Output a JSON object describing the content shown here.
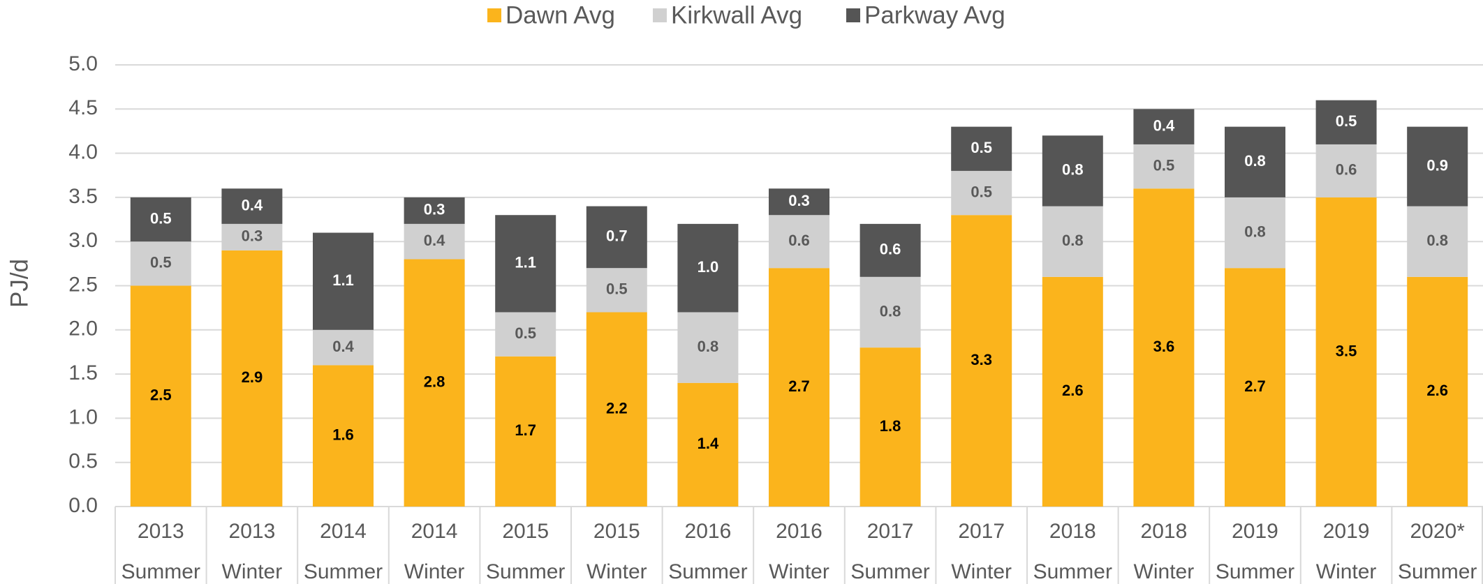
{
  "chart_data": {
    "type": "stacked-bar",
    "y_label": "PJ/d",
    "categories": [
      [
        "2013",
        "Summer"
      ],
      [
        "2013",
        "Winter"
      ],
      [
        "2014",
        "Summer"
      ],
      [
        "2014",
        "Winter"
      ],
      [
        "2015",
        "Summer"
      ],
      [
        "2015",
        "Winter"
      ],
      [
        "2016",
        "Summer"
      ],
      [
        "2016",
        "Winter"
      ],
      [
        "2017",
        "Summer"
      ],
      [
        "2017",
        "Winter"
      ],
      [
        "2018",
        "Summer"
      ],
      [
        "2018",
        "Winter"
      ],
      [
        "2019",
        "Summer"
      ],
      [
        "2019",
        "Winter"
      ],
      [
        "2020*",
        "Summer"
      ]
    ],
    "series": [
      {
        "name": "Dawn Avg",
        "color": "#fbb41c",
        "label_color": "#000000",
        "values": [
          2.5,
          2.9,
          1.6,
          2.8,
          1.7,
          2.2,
          1.4,
          2.7,
          1.8,
          3.3,
          2.6,
          3.6,
          2.7,
          3.5,
          2.6
        ],
        "value_labels": [
          "2.5",
          "2.9",
          "1.6",
          "2.8",
          "1.7",
          "2.2",
          "1.4",
          "2.7",
          "1.8",
          "3.3",
          "2.6",
          "3.6",
          "2.7",
          "3.5",
          "2.6"
        ]
      },
      {
        "name": "Kirkwall Avg",
        "color": "#d0d0d0",
        "label_color": "#595959",
        "values": [
          0.5,
          0.3,
          0.4,
          0.4,
          0.5,
          0.5,
          0.8,
          0.6,
          0.8,
          0.5,
          0.8,
          0.5,
          0.8,
          0.6,
          0.8
        ],
        "value_labels": [
          "0.5",
          "0.3",
          "0.4",
          "0.4",
          "0.5",
          "0.5",
          "0.8",
          "0.6",
          "0.8",
          "0.5",
          "0.8",
          "0.5",
          "0.8",
          "0.6",
          "0.8"
        ]
      },
      {
        "name": "Parkway Avg",
        "color": "#555555",
        "label_color": "#ffffff",
        "values": [
          0.5,
          0.4,
          1.1,
          0.3,
          1.1,
          0.7,
          1.0,
          0.3,
          0.6,
          0.5,
          0.8,
          0.4,
          0.8,
          0.5,
          0.9
        ],
        "value_labels": [
          "0.5",
          "0.4",
          "1.1",
          "0.3",
          "1.1",
          "0.7",
          "1.0",
          "0.3",
          "0.6",
          "0.5",
          "0.8",
          "0.4",
          "0.8",
          "0.5",
          "0.9"
        ]
      }
    ],
    "ylim": [
      0,
      5
    ],
    "yticks": [
      {
        "value": 0,
        "label": "0.0"
      },
      {
        "value": 0.5,
        "label": "0.5"
      },
      {
        "value": 1,
        "label": "1.0"
      },
      {
        "value": 1.5,
        "label": "1.5"
      },
      {
        "value": 2,
        "label": "2.0"
      },
      {
        "value": 2.5,
        "label": "2.5"
      },
      {
        "value": 3,
        "label": "3.0"
      },
      {
        "value": 3.5,
        "label": "3.5"
      },
      {
        "value": 4,
        "label": "4.0"
      },
      {
        "value": 4.5,
        "label": "4.5"
      },
      {
        "value": 5,
        "label": "5.0"
      }
    ],
    "grid": true,
    "legend": "top"
  }
}
